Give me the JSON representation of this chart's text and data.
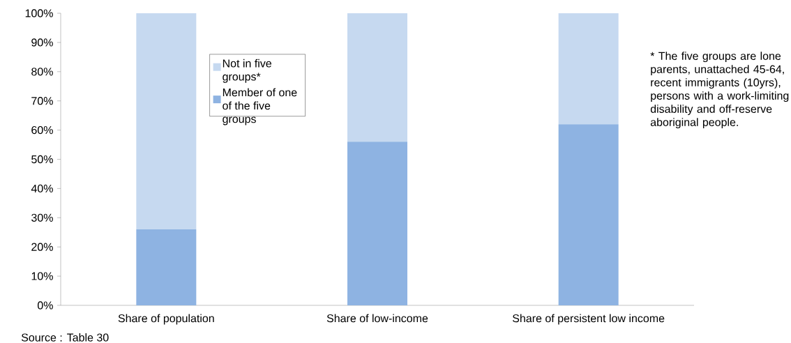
{
  "chart_data": {
    "type": "bar",
    "stacked": true,
    "categories": [
      "Share of population",
      "Share of low-income",
      "Share of persistent low income"
    ],
    "series": [
      {
        "name": "Member of one of the five groups",
        "color": "#8eb3e2",
        "values": [
          26,
          56,
          62
        ]
      },
      {
        "name": "Not in five groups*",
        "color": "#c6d9f0",
        "values": [
          74,
          44,
          38
        ]
      }
    ],
    "ylim": [
      0,
      100
    ],
    "yticks": [
      {
        "value": 0,
        "label": "0%"
      },
      {
        "value": 10,
        "label": "10%"
      },
      {
        "value": 20,
        "label": "20%"
      },
      {
        "value": 30,
        "label": "30%"
      },
      {
        "value": 40,
        "label": "40%"
      },
      {
        "value": 50,
        "label": "50%"
      },
      {
        "value": 60,
        "label": "60%"
      },
      {
        "value": 70,
        "label": "70%"
      },
      {
        "value": 80,
        "label": "80%"
      },
      {
        "value": 90,
        "label": "90%"
      },
      {
        "value": 100,
        "label": "100%"
      }
    ],
    "legend": "top left",
    "annotations": [
      "* The five groups are lone parents, unattached 45-64, recent immigrants (10yrs), persons with a work-limiting disability and off-reserve aboriginal people.",
      "Source : Table 30"
    ]
  }
}
